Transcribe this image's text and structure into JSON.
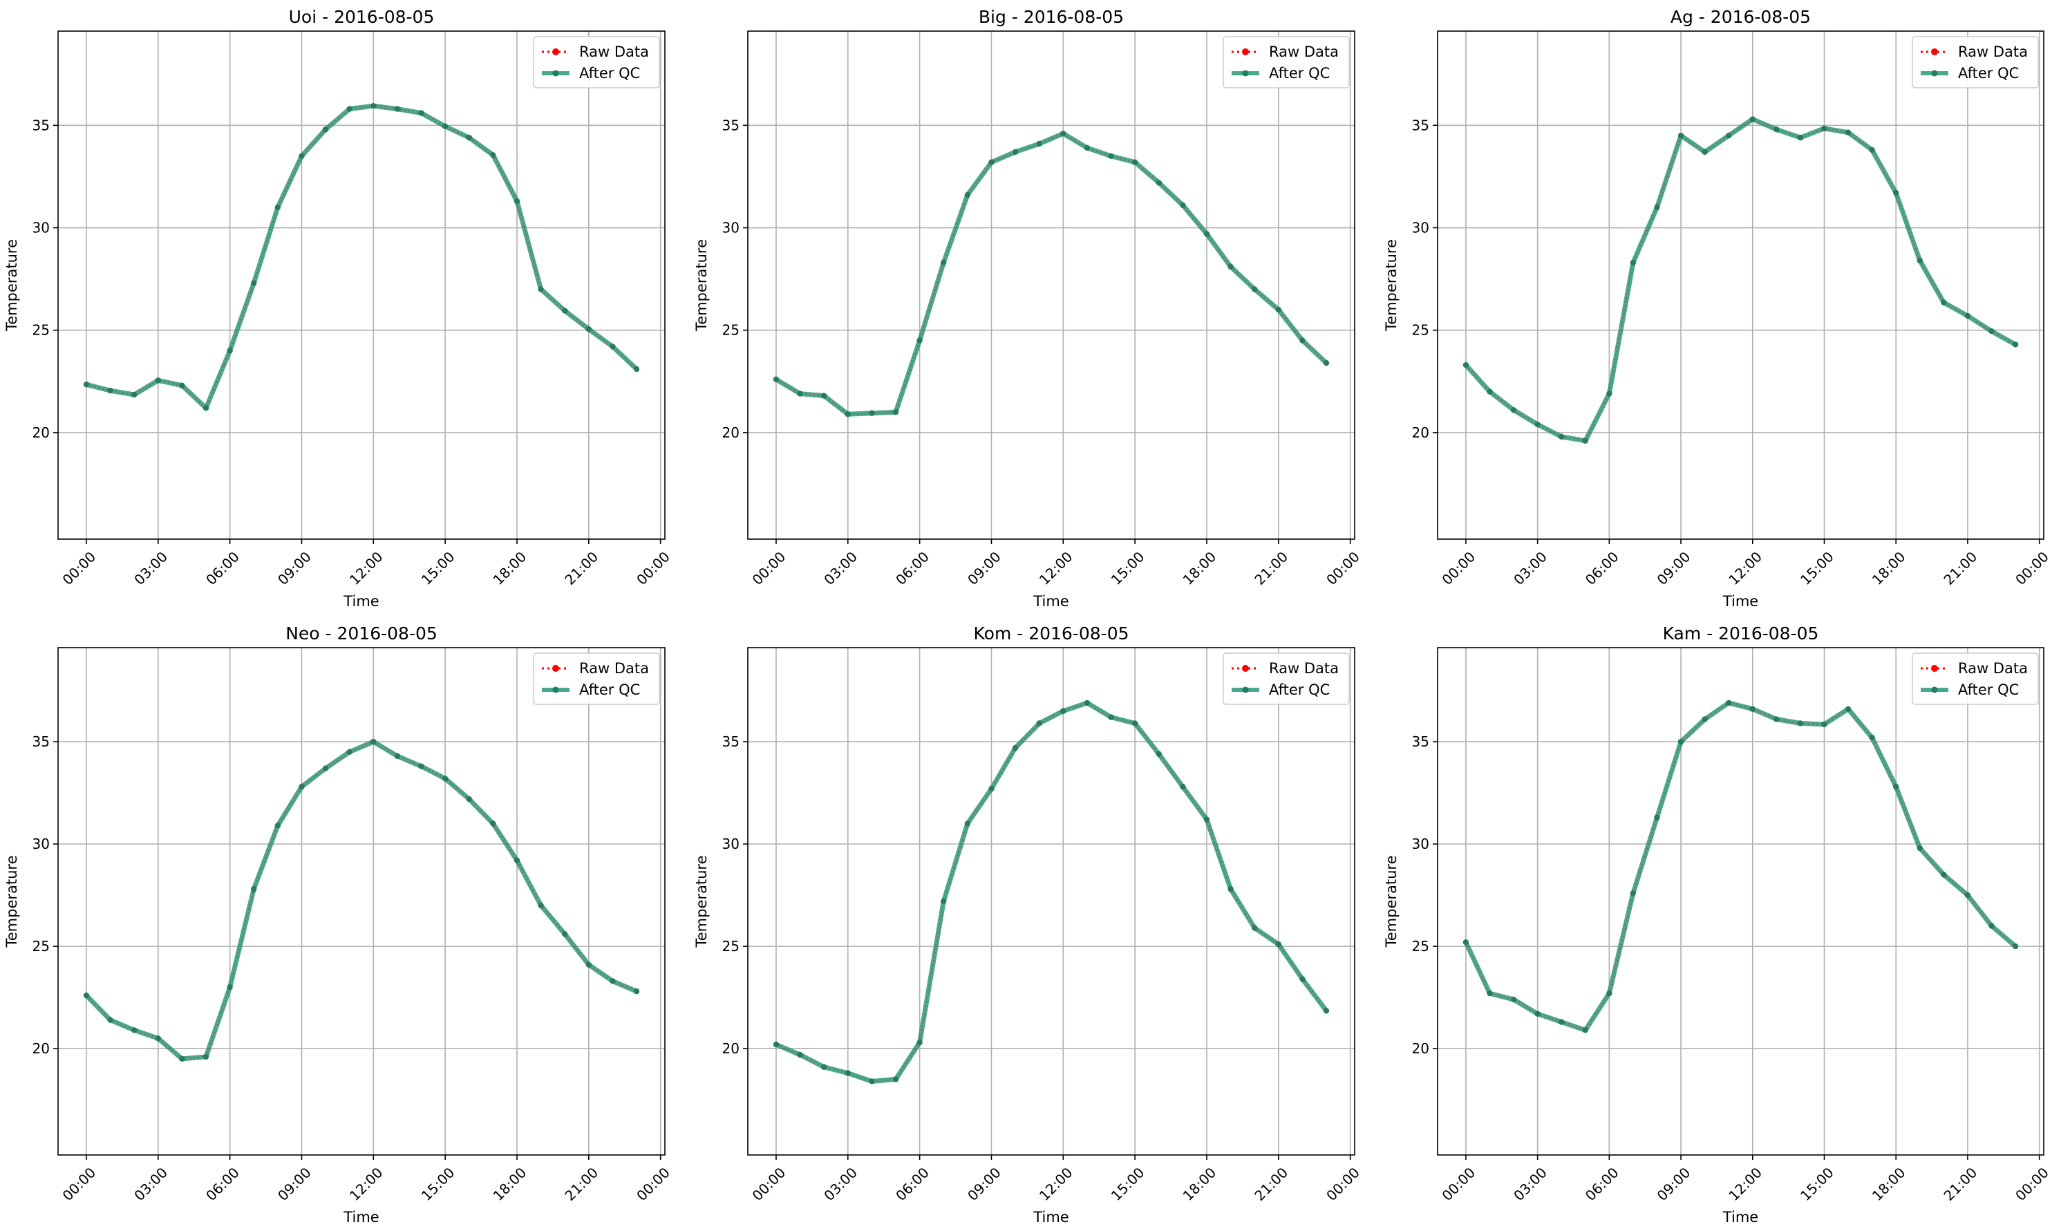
{
  "colors": {
    "raw": "#ff0000",
    "after_qc": "#229674",
    "after_qc_marker": "#1c7e62",
    "grid": "#b0b0b0",
    "axes": "#000000"
  },
  "chart_data": [
    {
      "type": "line",
      "title": "Uoi - 2016-08-05",
      "xlabel": "Time",
      "ylabel": "Temperature",
      "x_ticks": [
        "00:00",
        "03:00",
        "06:00",
        "09:00",
        "12:00",
        "15:00",
        "18:00",
        "21:00",
        "00:00"
      ],
      "y_ticks": [
        20,
        25,
        30,
        35
      ],
      "xlim": [
        "2016-08-04 22:49",
        "2016-08-06 00:11"
      ],
      "ylim": [
        14.8,
        39.6
      ],
      "grid": true,
      "legend_position": "top-right",
      "x": [
        "00:00",
        "01:00",
        "02:00",
        "03:00",
        "04:00",
        "05:00",
        "06:00",
        "07:00",
        "08:00",
        "09:00",
        "10:00",
        "11:00",
        "12:00",
        "13:00",
        "14:00",
        "15:00",
        "16:00",
        "17:00",
        "18:00",
        "19:00",
        "20:00",
        "21:00",
        "22:00",
        "23:00"
      ],
      "series": [
        {
          "name": "Raw Data",
          "values": [
            22.35,
            22.05,
            21.85,
            22.55,
            22.3,
            21.2,
            24.0,
            27.3,
            31.0,
            33.5,
            34.8,
            35.8,
            35.95,
            35.8,
            35.6,
            34.95,
            34.4,
            33.55,
            31.3,
            27.0,
            25.95,
            25.05,
            24.2,
            23.1
          ]
        },
        {
          "name": "After QC",
          "values": [
            22.35,
            22.05,
            21.85,
            22.55,
            22.3,
            21.2,
            24.0,
            27.3,
            31.0,
            33.5,
            34.8,
            35.8,
            35.95,
            35.8,
            35.6,
            34.95,
            34.4,
            33.55,
            31.3,
            27.0,
            25.95,
            25.05,
            24.2,
            23.1
          ]
        }
      ]
    },
    {
      "type": "line",
      "title": "Big - 2016-08-05",
      "xlabel": "Time",
      "ylabel": "Temperature",
      "x_ticks": [
        "00:00",
        "03:00",
        "06:00",
        "09:00",
        "12:00",
        "15:00",
        "18:00",
        "21:00",
        "00:00"
      ],
      "y_ticks": [
        20,
        25,
        30,
        35
      ],
      "xlim": [
        "2016-08-04 22:49",
        "2016-08-06 00:11"
      ],
      "ylim": [
        14.8,
        39.6
      ],
      "grid": true,
      "legend_position": "top-right",
      "x": [
        "00:00",
        "01:00",
        "02:00",
        "03:00",
        "04:00",
        "05:00",
        "06:00",
        "07:00",
        "08:00",
        "09:00",
        "10:00",
        "11:00",
        "12:00",
        "13:00",
        "14:00",
        "15:00",
        "16:00",
        "17:00",
        "18:00",
        "19:00",
        "20:00",
        "21:00",
        "22:00",
        "23:00"
      ],
      "series": [
        {
          "name": "Raw Data",
          "values": [
            22.6,
            21.9,
            21.8,
            20.9,
            20.95,
            21.0,
            24.5,
            28.3,
            31.6,
            33.2,
            33.7,
            34.1,
            34.6,
            33.9,
            33.5,
            33.2,
            32.2,
            31.1,
            29.7,
            28.1,
            27.0,
            26.0,
            24.5,
            23.4
          ]
        },
        {
          "name": "After QC",
          "values": [
            22.6,
            21.9,
            21.8,
            20.9,
            20.95,
            21.0,
            24.5,
            28.3,
            31.6,
            33.2,
            33.7,
            34.1,
            34.6,
            33.9,
            33.5,
            33.2,
            32.2,
            31.1,
            29.7,
            28.1,
            27.0,
            26.0,
            24.5,
            23.4
          ]
        }
      ]
    },
    {
      "type": "line",
      "title": "Ag - 2016-08-05",
      "xlabel": "Time",
      "ylabel": "Temperature",
      "x_ticks": [
        "00:00",
        "03:00",
        "06:00",
        "09:00",
        "12:00",
        "15:00",
        "18:00",
        "21:00",
        "00:00"
      ],
      "y_ticks": [
        20,
        25,
        30,
        35
      ],
      "xlim": [
        "2016-08-04 22:49",
        "2016-08-06 00:11"
      ],
      "ylim": [
        14.8,
        39.6
      ],
      "grid": true,
      "legend_position": "top-right",
      "x": [
        "00:00",
        "01:00",
        "02:00",
        "03:00",
        "04:00",
        "05:00",
        "06:00",
        "07:00",
        "08:00",
        "09:00",
        "10:00",
        "11:00",
        "12:00",
        "13:00",
        "14:00",
        "15:00",
        "16:00",
        "17:00",
        "18:00",
        "19:00",
        "20:00",
        "21:00",
        "22:00",
        "23:00"
      ],
      "series": [
        {
          "name": "Raw Data",
          "values": [
            23.3,
            22.0,
            21.1,
            20.4,
            19.8,
            19.6,
            21.9,
            28.3,
            31.0,
            34.5,
            33.7,
            34.5,
            35.3,
            34.8,
            34.4,
            34.85,
            34.65,
            33.8,
            31.7,
            28.4,
            26.35,
            25.7,
            24.95,
            24.3
          ]
        },
        {
          "name": "After QC",
          "values": [
            23.3,
            22.0,
            21.1,
            20.4,
            19.8,
            19.6,
            21.9,
            28.3,
            31.0,
            34.5,
            33.7,
            34.5,
            35.3,
            34.8,
            34.4,
            34.85,
            34.65,
            33.8,
            31.7,
            28.4,
            26.35,
            25.7,
            24.95,
            24.3
          ]
        }
      ]
    },
    {
      "type": "line",
      "title": "Neo - 2016-08-05",
      "xlabel": "Time",
      "ylabel": "Temperature",
      "x_ticks": [
        "00:00",
        "03:00",
        "06:00",
        "09:00",
        "12:00",
        "15:00",
        "18:00",
        "21:00",
        "00:00"
      ],
      "y_ticks": [
        20,
        25,
        30,
        35
      ],
      "xlim": [
        "2016-08-04 22:49",
        "2016-08-06 00:11"
      ],
      "ylim": [
        14.8,
        39.6
      ],
      "grid": true,
      "legend_position": "top-right",
      "x": [
        "00:00",
        "01:00",
        "02:00",
        "03:00",
        "04:00",
        "05:00",
        "06:00",
        "07:00",
        "08:00",
        "09:00",
        "10:00",
        "11:00",
        "12:00",
        "13:00",
        "14:00",
        "15:00",
        "16:00",
        "17:00",
        "18:00",
        "19:00",
        "20:00",
        "21:00",
        "22:00",
        "23:00"
      ],
      "series": [
        {
          "name": "Raw Data",
          "values": [
            22.6,
            21.4,
            20.9,
            20.5,
            19.5,
            19.6,
            23.0,
            27.8,
            30.9,
            32.8,
            33.7,
            34.5,
            35.0,
            34.3,
            33.8,
            33.2,
            32.2,
            31.0,
            29.2,
            27.0,
            25.6,
            24.1,
            23.3,
            22.8
          ]
        },
        {
          "name": "After QC",
          "values": [
            22.6,
            21.4,
            20.9,
            20.5,
            19.5,
            19.6,
            23.0,
            27.8,
            30.9,
            32.8,
            33.7,
            34.5,
            35.0,
            34.3,
            33.8,
            33.2,
            32.2,
            31.0,
            29.2,
            27.0,
            25.6,
            24.1,
            23.3,
            22.8
          ]
        }
      ]
    },
    {
      "type": "line",
      "title": "Kom - 2016-08-05",
      "xlabel": "Time",
      "ylabel": "Temperature",
      "x_ticks": [
        "00:00",
        "03:00",
        "06:00",
        "09:00",
        "12:00",
        "15:00",
        "18:00",
        "21:00",
        "00:00"
      ],
      "y_ticks": [
        20,
        25,
        30,
        35
      ],
      "xlim": [
        "2016-08-04 22:49",
        "2016-08-06 00:11"
      ],
      "ylim": [
        14.8,
        39.6
      ],
      "grid": true,
      "legend_position": "top-right",
      "x": [
        "00:00",
        "01:00",
        "02:00",
        "03:00",
        "04:00",
        "05:00",
        "06:00",
        "07:00",
        "08:00",
        "09:00",
        "10:00",
        "11:00",
        "12:00",
        "13:00",
        "14:00",
        "15:00",
        "16:00",
        "17:00",
        "18:00",
        "19:00",
        "20:00",
        "21:00",
        "22:00",
        "23:00"
      ],
      "series": [
        {
          "name": "Raw Data",
          "values": [
            20.2,
            19.7,
            19.1,
            18.8,
            18.4,
            18.5,
            20.3,
            27.2,
            31.0,
            32.7,
            34.7,
            35.9,
            36.5,
            36.9,
            36.2,
            35.9,
            34.4,
            32.8,
            31.2,
            27.8,
            25.9,
            25.1,
            23.4,
            21.85
          ]
        },
        {
          "name": "After QC",
          "values": [
            20.2,
            19.7,
            19.1,
            18.8,
            18.4,
            18.5,
            20.3,
            27.2,
            31.0,
            32.7,
            34.7,
            35.9,
            36.5,
            36.9,
            36.2,
            35.9,
            34.4,
            32.8,
            31.2,
            27.8,
            25.9,
            25.1,
            23.4,
            21.85
          ]
        }
      ]
    },
    {
      "type": "line",
      "title": "Kam - 2016-08-05",
      "xlabel": "Time",
      "ylabel": "Temperature",
      "x_ticks": [
        "00:00",
        "03:00",
        "06:00",
        "09:00",
        "12:00",
        "15:00",
        "18:00",
        "21:00",
        "00:00"
      ],
      "y_ticks": [
        20,
        25,
        30,
        35
      ],
      "xlim": [
        "2016-08-04 22:49",
        "2016-08-06 00:11"
      ],
      "ylim": [
        14.8,
        39.6
      ],
      "grid": true,
      "legend_position": "top-right",
      "x": [
        "00:00",
        "01:00",
        "02:00",
        "03:00",
        "04:00",
        "05:00",
        "06:00",
        "07:00",
        "08:00",
        "09:00",
        "10:00",
        "11:00",
        "12:00",
        "13:00",
        "14:00",
        "15:00",
        "16:00",
        "17:00",
        "18:00",
        "19:00",
        "20:00",
        "21:00",
        "22:00",
        "23:00"
      ],
      "series": [
        {
          "name": "Raw Data",
          "values": [
            25.2,
            22.7,
            22.4,
            21.7,
            21.3,
            20.9,
            22.7,
            27.6,
            31.3,
            35.0,
            36.1,
            36.9,
            36.6,
            36.1,
            35.9,
            35.85,
            36.6,
            35.2,
            32.8,
            29.8,
            28.5,
            27.5,
            26.0,
            25.0
          ]
        },
        {
          "name": "After QC",
          "values": [
            25.2,
            22.7,
            22.4,
            21.7,
            21.3,
            20.9,
            22.7,
            27.6,
            31.3,
            35.0,
            36.1,
            36.9,
            36.6,
            36.1,
            35.9,
            35.85,
            36.6,
            35.2,
            32.8,
            29.8,
            28.5,
            27.5,
            26.0,
            25.0
          ]
        }
      ]
    }
  ]
}
